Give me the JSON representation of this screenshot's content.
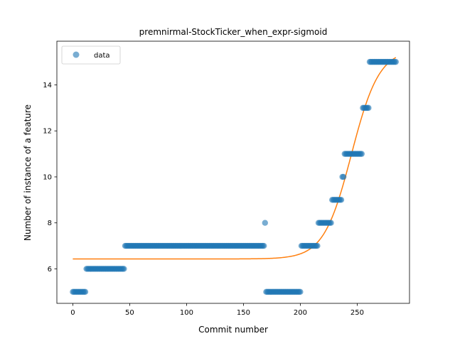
{
  "chart_data": {
    "type": "scatter",
    "title": "premnirmal-StockTicker_when_expr-sigmoid",
    "xlabel": "Commit number",
    "ylabel": "Number of instance of a feature",
    "xlim": [
      -14,
      296
    ],
    "ylim": [
      4.5,
      15.9
    ],
    "xticks": [
      0,
      50,
      100,
      150,
      200,
      250
    ],
    "yticks": [
      6,
      8,
      10,
      12,
      14
    ],
    "grid": false,
    "legend": {
      "position": "upper-left",
      "entries": [
        "data"
      ]
    },
    "colors": {
      "data": "#1f77b4",
      "fit": "#ff7f0e"
    },
    "series": [
      {
        "name": "data",
        "kind": "points",
        "segments": [
          {
            "x_start": 0,
            "x_end": 11,
            "y": 5
          },
          {
            "x_start": 12,
            "x_end": 45,
            "y": 6
          },
          {
            "x_start": 46,
            "x_end": 168,
            "y": 7
          },
          {
            "x_start": 169,
            "x_end": 169,
            "y": 8
          },
          {
            "x_start": 170,
            "x_end": 200,
            "y": 5
          },
          {
            "x_start": 201,
            "x_end": 215,
            "y": 7
          },
          {
            "x_start": 216,
            "x_end": 227,
            "y": 8
          },
          {
            "x_start": 228,
            "x_end": 236,
            "y": 9
          },
          {
            "x_start": 237,
            "x_end": 238,
            "y": 10
          },
          {
            "x_start": 239,
            "x_end": 254,
            "y": 11
          },
          {
            "x_start": 255,
            "x_end": 260,
            "y": 13
          },
          {
            "x_start": 261,
            "x_end": 284,
            "y": 15
          }
        ]
      },
      {
        "kind": "sigmoid-fit",
        "x_range": [
          0,
          284
        ],
        "samples": [
          {
            "x": 0,
            "y": 6.43
          },
          {
            "x": 100,
            "y": 6.43
          },
          {
            "x": 170,
            "y": 6.46
          },
          {
            "x": 200,
            "y": 6.62
          },
          {
            "x": 220,
            "y": 7.5
          },
          {
            "x": 235,
            "y": 9.3
          },
          {
            "x": 245,
            "y": 11.3
          },
          {
            "x": 255,
            "y": 13.3
          },
          {
            "x": 265,
            "y": 14.7
          },
          {
            "x": 284,
            "y": 15.38
          }
        ],
        "model": {
          "lower": 6.43,
          "upper": 15.55,
          "midpoint": 245,
          "rate": 0.082
        }
      }
    ]
  }
}
